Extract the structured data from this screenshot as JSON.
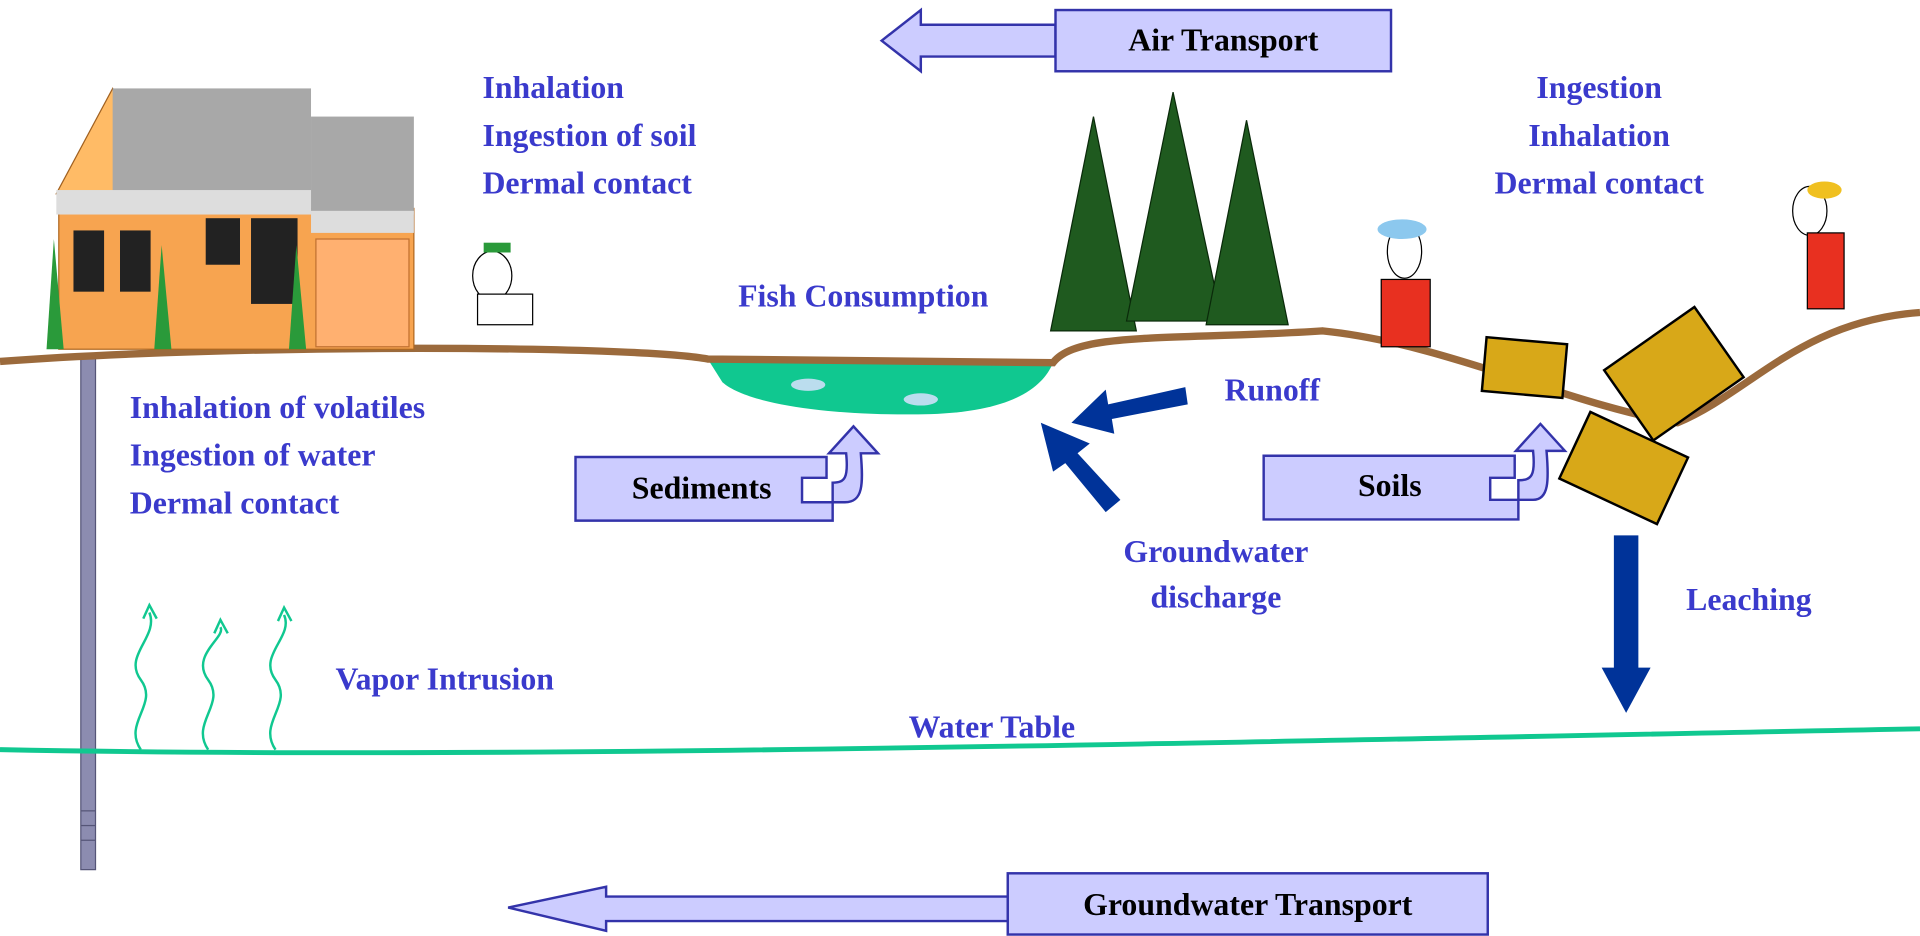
{
  "air_transport": "Air Transport",
  "residential_exposure": [
    "Inhalation",
    "Ingestion of soil",
    "Dermal contact"
  ],
  "worker_exposure": [
    "Ingestion",
    "Inhalation",
    "Dermal contact"
  ],
  "groundwater_use_exposure": [
    "Inhalation of volatiles",
    "Ingestion of water",
    "Dermal contact"
  ],
  "fish_consumption": "Fish Consumption",
  "sediments": "Sediments",
  "runoff": "Runoff",
  "groundwater_discharge": [
    "Groundwater",
    "discharge"
  ],
  "soils": "Soils",
  "leaching": "Leaching",
  "vapor_intrusion": "Vapor Intrusion",
  "water_table": "Water Table",
  "groundwater_transport": "Groundwater Transport"
}
